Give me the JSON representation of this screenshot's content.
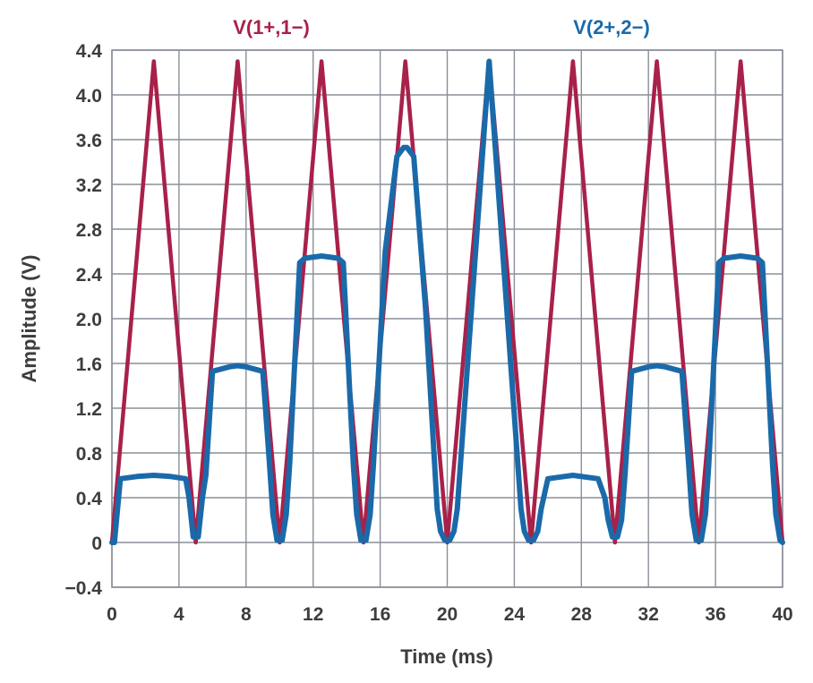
{
  "chart_data": {
    "type": "line",
    "title": "",
    "xlabel": "Time (ms)",
    "ylabel": "Amplitude (V)",
    "xlim": [
      0,
      40
    ],
    "ylim": [
      -0.4,
      4.4
    ],
    "grid": true,
    "x_ticks": [
      0,
      4,
      8,
      12,
      16,
      20,
      24,
      28,
      32,
      36,
      40
    ],
    "x_tick_labels": [
      "0",
      "4",
      "8",
      "12",
      "16",
      "20",
      "24",
      "28",
      "32",
      "36",
      "40"
    ],
    "y_ticks": [
      -0.4,
      0,
      0.4,
      0.8,
      1.2,
      1.6,
      2.0,
      2.4,
      2.8,
      3.2,
      3.6,
      4.0,
      4.4
    ],
    "y_tick_labels": [
      "−0.4",
      "0",
      "0.4",
      "0.8",
      "1.2",
      "1.6",
      "2.0",
      "2.4",
      "2.8",
      "3.2",
      "3.6",
      "4.0",
      "4.4"
    ],
    "series": [
      {
        "name": "V(1+,1−)",
        "color": "#a8214a",
        "x": [
          0,
          2.5,
          5,
          7.5,
          10,
          12.5,
          15,
          17.5,
          20,
          22.5,
          25,
          27.5,
          30,
          32.5,
          35,
          37.5,
          40
        ],
        "y": [
          0,
          4.3,
          0,
          4.3,
          0,
          4.3,
          0,
          4.3,
          0,
          4.3,
          0,
          4.3,
          0,
          4.3,
          0,
          4.3,
          0
        ]
      },
      {
        "name": "V(2+,2−)",
        "color": "#1a6aaa",
        "x": [
          0,
          0.15,
          0.5,
          1.5,
          2.5,
          3.5,
          4.4,
          4.6,
          4.85,
          5.15,
          5.4,
          5.6,
          6.0,
          7.0,
          7.5,
          8.0,
          9.0,
          9.4,
          9.6,
          9.85,
          10.15,
          10.4,
          10.6,
          11.2,
          11.5,
          12.5,
          13.5,
          13.8,
          14.4,
          14.6,
          14.85,
          15.15,
          15.4,
          15.6,
          16.3,
          17.0,
          17.4,
          17.6,
          18.0,
          18.7,
          19.4,
          19.6,
          19.85,
          20.15,
          20.4,
          20.6,
          22.5,
          24.4,
          24.6,
          24.85,
          25.15,
          25.4,
          25.6,
          26.0,
          27.5,
          29.0,
          29.4,
          29.6,
          29.85,
          30.15,
          30.4,
          30.6,
          31.0,
          32.0,
          32.5,
          33.0,
          34.0,
          34.4,
          34.6,
          34.85,
          35.15,
          35.4,
          35.6,
          36.2,
          36.5,
          37.5,
          38.5,
          38.8,
          39.4,
          39.6,
          39.85,
          40.0
        ],
        "y": [
          0,
          0,
          0.57,
          0.59,
          0.6,
          0.59,
          0.57,
          0.4,
          0.05,
          0.05,
          0.4,
          0.6,
          1.53,
          1.57,
          1.58,
          1.57,
          1.53,
          0.7,
          0.25,
          0.02,
          0.02,
          0.25,
          0.7,
          2.5,
          2.54,
          2.56,
          2.54,
          2.5,
          0.7,
          0.25,
          0.02,
          0.02,
          0.25,
          0.7,
          2.6,
          3.45,
          3.53,
          3.53,
          3.45,
          2.1,
          0.3,
          0.1,
          0.02,
          0.02,
          0.1,
          0.3,
          4.3,
          0.3,
          0.1,
          0.02,
          0.02,
          0.1,
          0.3,
          0.57,
          0.6,
          0.57,
          0.4,
          0.2,
          0.05,
          0.05,
          0.2,
          0.6,
          1.53,
          1.57,
          1.58,
          1.57,
          1.53,
          0.7,
          0.25,
          0.02,
          0.02,
          0.25,
          0.7,
          2.5,
          2.54,
          2.56,
          2.54,
          2.5,
          0.7,
          0.25,
          0.02,
          0.0
        ]
      }
    ]
  }
}
